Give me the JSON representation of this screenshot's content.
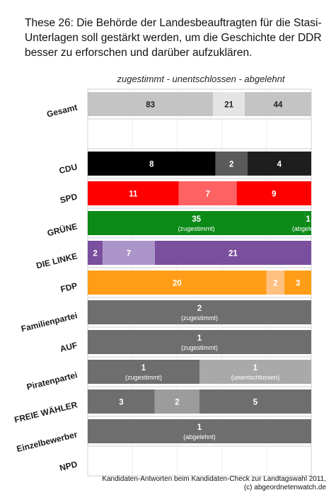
{
  "title": "These 26: Die Behörde der Landesbeauftragten für die Stasi-Unterlagen soll gestärkt werden, um die Geschichte der DDR besser zu erforschen und darüber aufzuklären.",
  "source": {
    "line1": "Kandidaten-Antworten beim Kandidaten-Check zur Landtagswahl 2011,",
    "line2": "(c) abgeordnetenwatch.de"
  },
  "chart_data": {
    "type": "bar",
    "orientation": "horizontal",
    "stacked": true,
    "normalized": true,
    "legend_text": "zugestimmt - unentschlossen - abgelehnt",
    "categories": [
      "Gesamt",
      "",
      "CDU",
      "SPD",
      "GRÜNE",
      "DIE LINKE",
      "FDP",
      "Familienpartei",
      "AUF",
      "Piratenpartei",
      "FREIE WÄHLER",
      "Einzelbewerber",
      "NPD"
    ],
    "series": [
      {
        "name": "zugestimmt",
        "values": [
          83,
          null,
          8,
          11,
          35,
          2,
          20,
          2,
          1,
          1,
          3,
          null,
          null
        ]
      },
      {
        "name": "unentschlossen",
        "values": [
          21,
          null,
          2,
          7,
          null,
          7,
          2,
          null,
          null,
          1,
          2,
          null,
          null
        ]
      },
      {
        "name": "abgelehnt",
        "values": [
          44,
          null,
          4,
          9,
          1,
          21,
          3,
          null,
          null,
          null,
          5,
          1,
          null
        ]
      }
    ],
    "colors": {
      "Gesamt": [
        "#c4c4c4",
        "#e4e4e4",
        "#c4c4c4"
      ],
      "CDU": [
        "#000000",
        "#5a5a5a",
        "#1e1e1e"
      ],
      "SPD": [
        "#ff0000",
        "#ff6262",
        "#ff0000"
      ],
      "GRÜNE": [
        "#0b8a17",
        "#0b8a17",
        "#0b8a17"
      ],
      "DIE LINKE": [
        "#7a4f9e",
        "#ac96c9",
        "#7a4f9e"
      ],
      "FDP": [
        "#ff9d16",
        "#ffc080",
        "#ff9d16"
      ],
      "Familienpartei": [
        "#6e6e6e",
        "#6e6e6e",
        "#6e6e6e"
      ],
      "AUF": [
        "#6e6e6e",
        "#6e6e6e",
        "#6e6e6e"
      ],
      "Piratenpartei": [
        "#6e6e6e",
        "#a9a9a9",
        "#6e6e6e"
      ],
      "FREIE WÄHLER": [
        "#6e6e6e",
        "#9c9c9c",
        "#6e6e6e"
      ],
      "Einzelbewerber": [
        "#6e6e6e",
        "#6e6e6e",
        "#6e6e6e"
      ]
    },
    "sub_labels": {
      "GRÜNE": [
        "(zugestimmt)",
        null,
        "(abgelehnt)"
      ],
      "Familienpartei": [
        "(zugestimmt)",
        null,
        null
      ],
      "AUF": [
        "(zugestimmt)",
        null,
        null
      ],
      "Piratenpartei": [
        "(zugestimmt)",
        "(unentschlossen)",
        null
      ],
      "Einzelbewerber": [
        null,
        null,
        "(abgelehnt)"
      ]
    },
    "grid": true
  }
}
